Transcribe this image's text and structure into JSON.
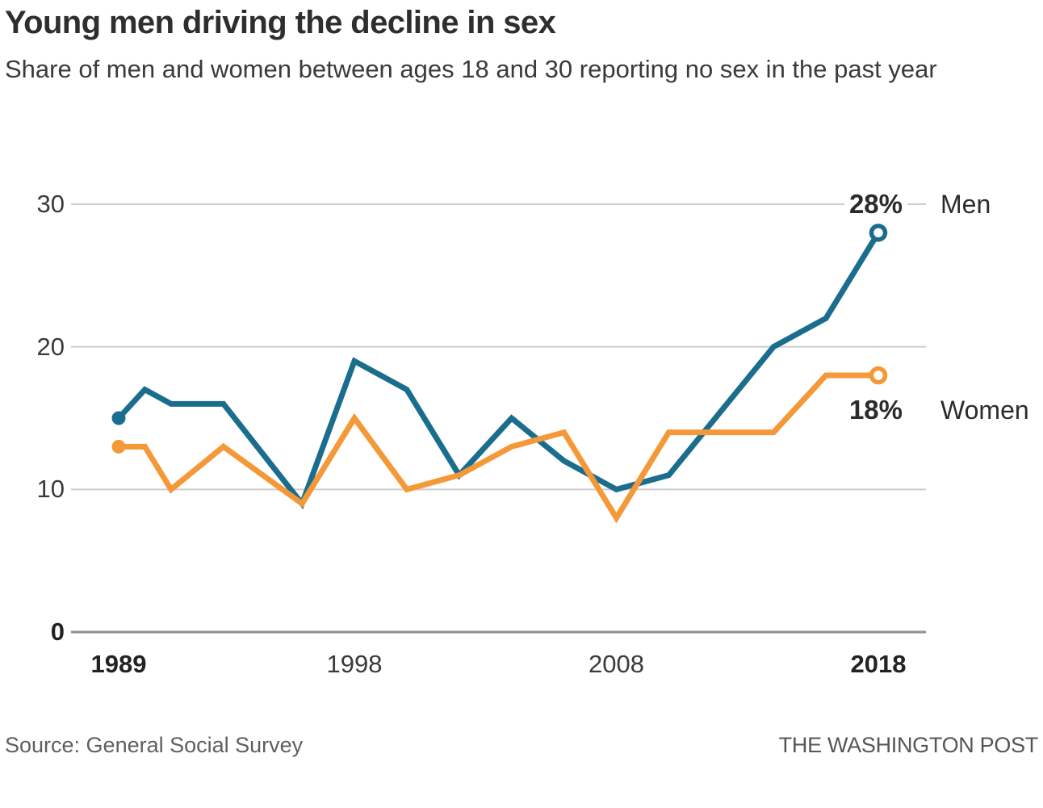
{
  "chart_data": {
    "type": "line",
    "title": "Young men driving the decline in sex",
    "subtitle": "Share of men and women between ages 18 and 30 reporting no sex in the past year",
    "unit": "%",
    "grid": true,
    "legend_position": "end-of-line",
    "x_axis": {
      "min": 1989,
      "max": 2018,
      "ticks": [
        {
          "label": "1989",
          "year": 1989,
          "bold": true
        },
        {
          "label": "1998",
          "year": 1998,
          "bold": false
        },
        {
          "label": "2008",
          "year": 2008,
          "bold": false
        },
        {
          "label": "2018",
          "year": 2018,
          "bold": true
        }
      ]
    },
    "y_axis": {
      "min": 0,
      "max": 30,
      "ticks": [
        {
          "label": "30",
          "value": 30,
          "bold": false
        },
        {
          "label": "20",
          "value": 20,
          "bold": false
        },
        {
          "label": "10",
          "value": 10,
          "bold": false
        },
        {
          "label": "0",
          "value": 0,
          "bold": true
        }
      ]
    },
    "series": [
      {
        "name": "Men",
        "color": "#1b6d8e",
        "end_label": "28%",
        "points": [
          [
            1989,
            15
          ],
          [
            1990,
            17
          ],
          [
            1991,
            16
          ],
          [
            1993,
            16
          ],
          [
            1996,
            9
          ],
          [
            1998,
            19
          ],
          [
            2000,
            17
          ],
          [
            2002,
            11
          ],
          [
            2004,
            15
          ],
          [
            2006,
            12
          ],
          [
            2008,
            10
          ],
          [
            2010,
            11
          ],
          [
            2014,
            20
          ],
          [
            2016,
            22
          ],
          [
            2018,
            28
          ]
        ]
      },
      {
        "name": "Women",
        "color": "#f49838",
        "end_label": "18%",
        "points": [
          [
            1989,
            13
          ],
          [
            1990,
            13
          ],
          [
            1991,
            10
          ],
          [
            1993,
            13
          ],
          [
            1996,
            9
          ],
          [
            1998,
            15
          ],
          [
            2000,
            10
          ],
          [
            2002,
            11
          ],
          [
            2004,
            13
          ],
          [
            2006,
            14
          ],
          [
            2008,
            8
          ],
          [
            2010,
            14
          ],
          [
            2012,
            14
          ],
          [
            2014,
            14
          ],
          [
            2016,
            18
          ],
          [
            2018,
            18
          ]
        ]
      }
    ]
  },
  "footer": {
    "source": "Source: General Social Survey",
    "credit": "THE WASHINGTON POST"
  }
}
